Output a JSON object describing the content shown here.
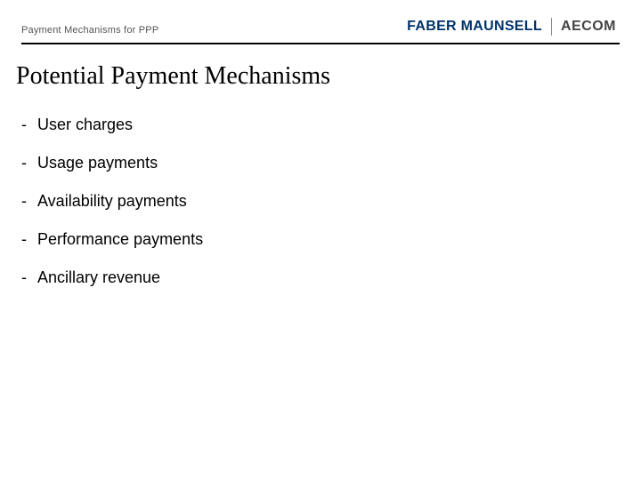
{
  "header": {
    "subtitle": "Payment Mechanisms for PPP",
    "logo_left": "FABER MAUNSELL",
    "logo_right": "AECOM"
  },
  "title": "Potential Payment Mechanisms",
  "bullets": [
    {
      "text": "User charges"
    },
    {
      "text": "Usage payments"
    },
    {
      "text": "Availability payments"
    },
    {
      "text": "Performance payments"
    },
    {
      "text": "Ancillary revenue"
    }
  ],
  "style": {
    "background_color": "#ffffff",
    "rule_color": "#000000",
    "title_font": "Times New Roman",
    "title_fontsize": 28,
    "body_font": "Arial",
    "body_fontsize": 18,
    "logo_fm_color": "#00336b",
    "logo_aecom_color": "#444444",
    "subtitle_color": "#555555",
    "bullet_marker": "-"
  }
}
